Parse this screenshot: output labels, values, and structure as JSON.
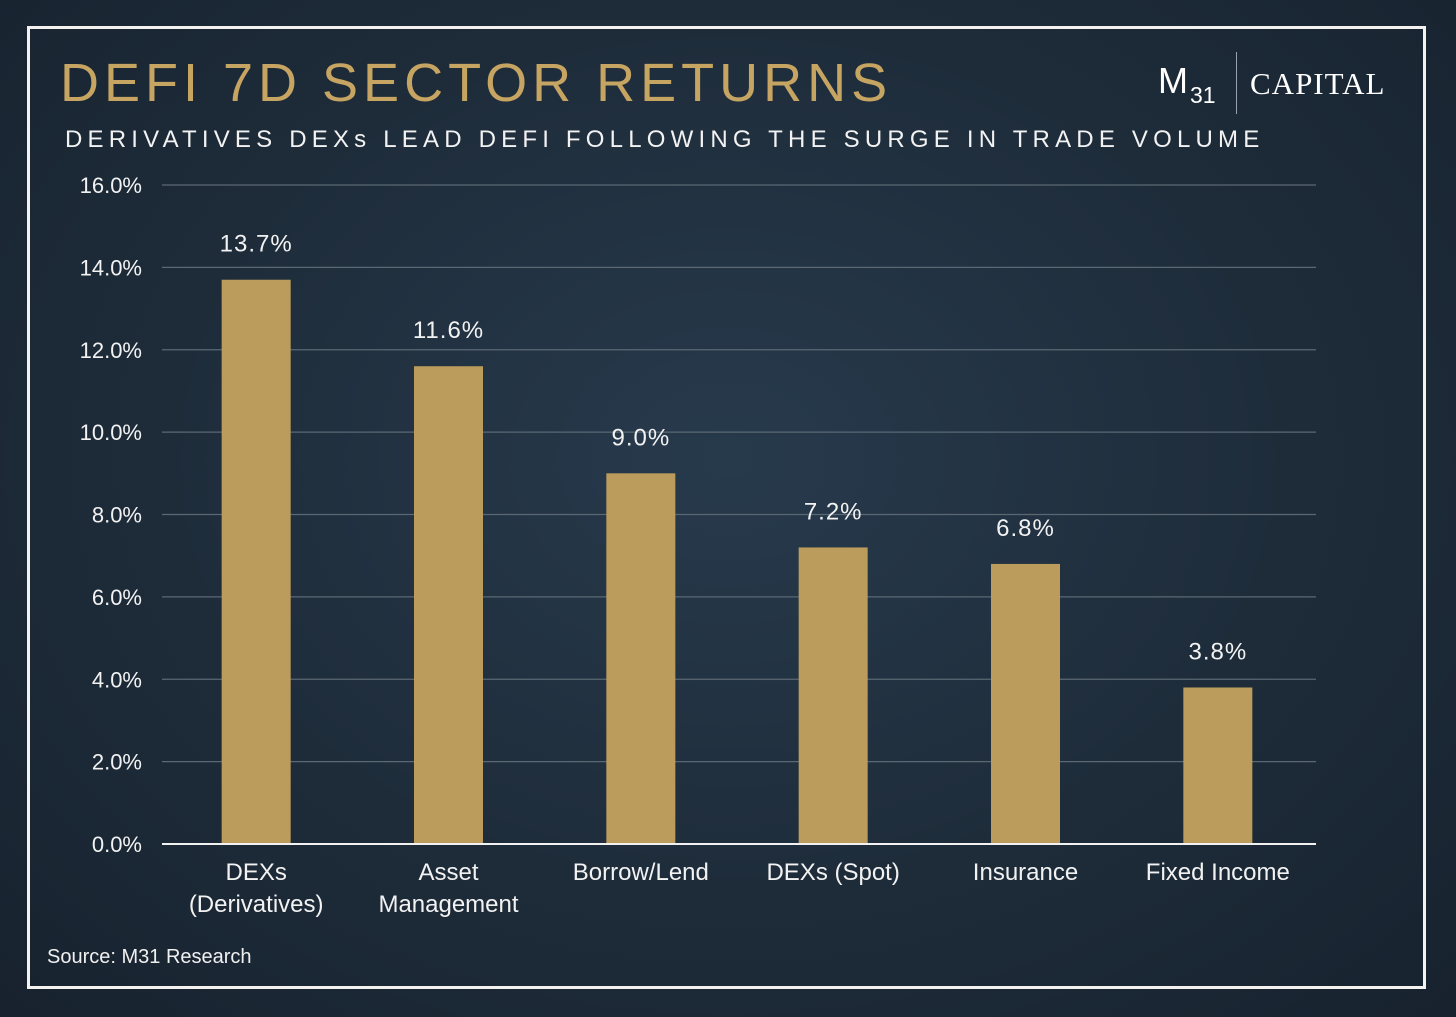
{
  "title": "DEFI 7D SECTOR RETURNS",
  "subtitle": "DERIVATIVES DEXs LEAD DEFI FOLLOWING THE SURGE IN TRADE VOLUME",
  "logo": {
    "mark": "M",
    "subscript": "31",
    "wordmark": "CAPITAL"
  },
  "source": "Source: M31 Research",
  "colors": {
    "bar": "#bc9c5c",
    "title": "#c6a462",
    "grid": "#5b6873",
    "axis": "#f2f2f2"
  },
  "chart_data": {
    "type": "bar",
    "title": "DEFI 7D SECTOR RETURNS",
    "subtitle": "DERIVATIVES DEXs LEAD DEFI FOLLOWING THE SURGE IN TRADE VOLUME",
    "xlabel": "",
    "ylabel": "",
    "categories": [
      [
        "DEXs",
        "(Derivatives)"
      ],
      [
        "Asset",
        "Management"
      ],
      [
        "Borrow/Lend"
      ],
      [
        "DEXs (Spot)"
      ],
      [
        "Insurance"
      ],
      [
        "Fixed Income"
      ]
    ],
    "values": [
      13.7,
      11.6,
      9.0,
      7.2,
      6.8,
      3.8
    ],
    "data_labels": [
      "13.7%",
      "11.6%",
      "9.0%",
      "7.2%",
      "6.8%",
      "3.8%"
    ],
    "ylim": [
      0,
      16
    ],
    "yticks": [
      0,
      2,
      4,
      6,
      8,
      10,
      12,
      14,
      16
    ],
    "ytick_labels": [
      "0.0%",
      "2.0%",
      "4.0%",
      "6.0%",
      "8.0%",
      "10.0%",
      "12.0%",
      "14.0%",
      "16.0%"
    ],
    "grid": true,
    "legend": "none"
  }
}
